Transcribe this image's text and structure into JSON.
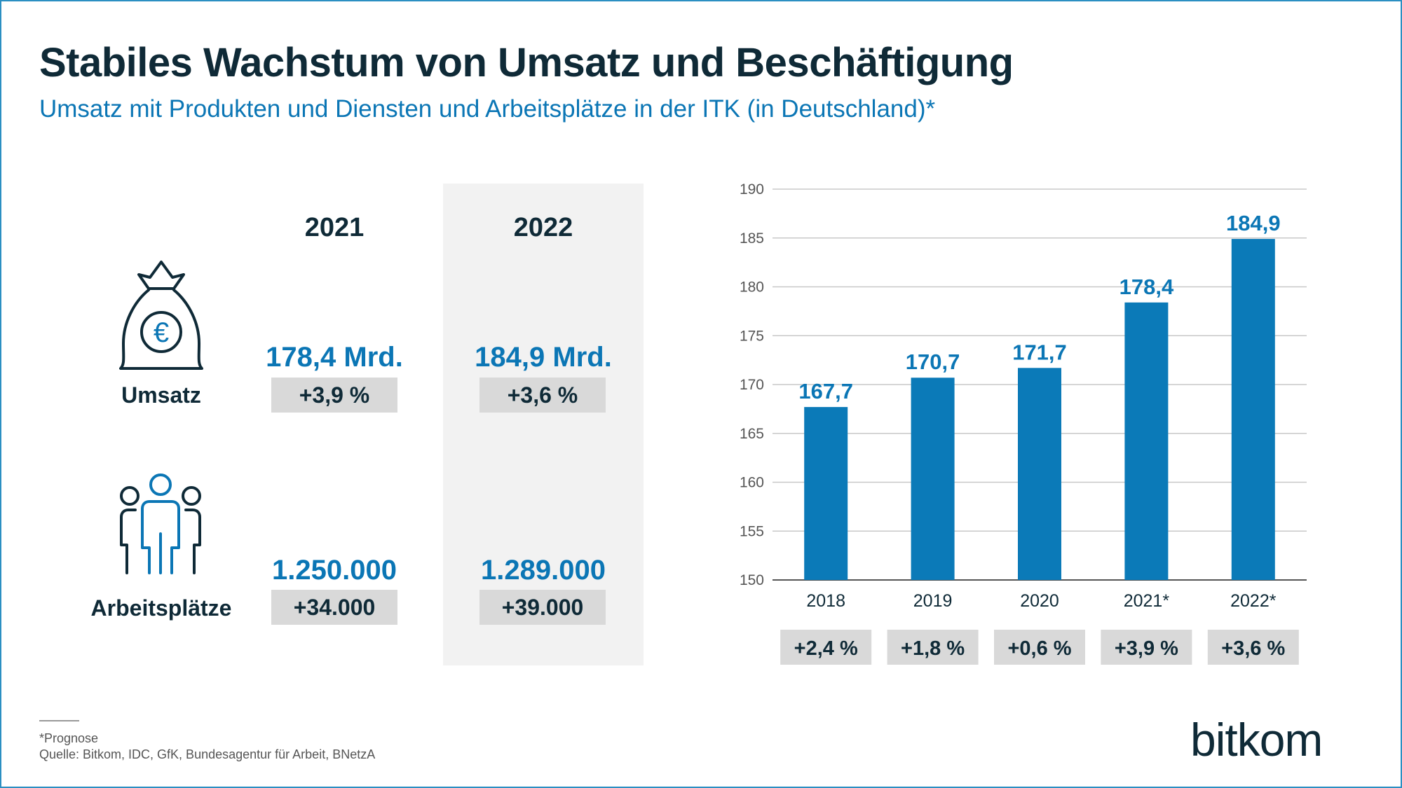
{
  "header": {
    "title": "Stabiles Wachstum von Umsatz und Beschäftigung",
    "subtitle": "Umsatz mit Produkten und Diensten und Arbeitsplätze in der ITK (in Deutschland)*"
  },
  "summary": {
    "years": [
      "2021",
      "2022"
    ],
    "revenue": {
      "label": "Umsatz",
      "icon": "money-bag-euro-icon",
      "values": [
        "178,4 Mrd.",
        "184,9 Mrd."
      ],
      "changes": [
        "+3,9 %",
        "+3,6 %"
      ]
    },
    "jobs": {
      "label": "Arbeitsplätze",
      "icon": "people-group-icon",
      "values": [
        "1.250.000",
        "1.289.000"
      ],
      "changes": [
        "+34.000",
        "+39.000"
      ]
    }
  },
  "chart_data": {
    "type": "bar",
    "categories": [
      "2018",
      "2019",
      "2020",
      "2021*",
      "2022*"
    ],
    "values": [
      167.7,
      170.7,
      171.7,
      178.4,
      184.9
    ],
    "value_labels": [
      "167,7",
      "170,7",
      "171,7",
      "178,4",
      "184,9"
    ],
    "changes": [
      "+2,4 %",
      "+1,8 %",
      "+0,6 %",
      "+3,9 %",
      "+3,6 %"
    ],
    "ylim": [
      150,
      190
    ],
    "yticks": [
      150,
      155,
      160,
      165,
      170,
      175,
      180,
      185,
      190
    ],
    "grid": true,
    "bar_color": "#0b7ab8",
    "label_color": "#0b76b5"
  },
  "footer": {
    "note": "*Prognose",
    "source": "Quelle: Bitkom, IDC, GfK, Bundesagentur für Arbeit, BNetzA",
    "logo": "bitkom"
  },
  "colors": {
    "accent": "#0b76b5",
    "dark": "#0f2a37",
    "pill": "#d9d9d9",
    "shade": "#f2f2f2"
  }
}
